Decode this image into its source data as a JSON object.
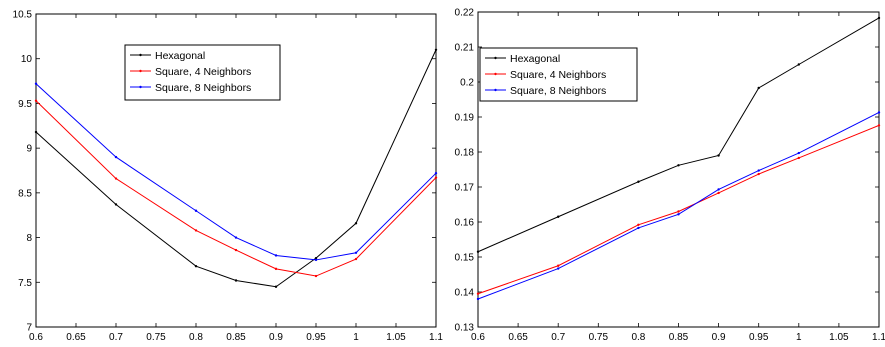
{
  "chart_data": [
    {
      "type": "line",
      "x": [
        0.6,
        0.7,
        0.8,
        0.85,
        0.9,
        0.95,
        1.0,
        1.1
      ],
      "xlim": [
        0.6,
        1.1
      ],
      "ylim": [
        7,
        10.5
      ],
      "xticks": [
        "0.6",
        "0.65",
        "0.7",
        "0.75",
        "0.8",
        "0.85",
        "0.9",
        "0.95",
        "1",
        "1.05",
        "1.1"
      ],
      "yticks": [
        "7",
        "7.5",
        "8",
        "8.5",
        "9",
        "9.5",
        "10",
        "10.5"
      ],
      "legend_position": "upper-center",
      "grid": false,
      "series": [
        {
          "name": "Hexagonal",
          "color": "#000000",
          "values": [
            9.18,
            8.37,
            7.68,
            7.52,
            7.45,
            7.77,
            8.16,
            10.1
          ]
        },
        {
          "name": "Square, 4 Neighbors",
          "color": "#ff0000",
          "values": [
            9.53,
            8.66,
            8.08,
            7.86,
            7.65,
            7.57,
            7.76,
            8.67
          ]
        },
        {
          "name": "Square, 8 Neighbors",
          "color": "#0000ff",
          "values": [
            9.72,
            8.9,
            8.3,
            8.0,
            7.8,
            7.75,
            7.83,
            8.72
          ]
        }
      ]
    },
    {
      "type": "line",
      "x": [
        0.6,
        0.7,
        0.8,
        0.85,
        0.9,
        0.95,
        1.0,
        1.1
      ],
      "xlim": [
        0.6,
        1.1
      ],
      "ylim": [
        0.13,
        0.22
      ],
      "xticks": [
        "0.6",
        "0.65",
        "0.7",
        "0.75",
        "0.8",
        "0.85",
        "0.9",
        "0.95",
        "1",
        "1.05",
        "1.1"
      ],
      "yticks": [
        "0.13",
        "0.14",
        "0.15",
        "0.16",
        "0.17",
        "0.18",
        "0.19",
        "0.2",
        "0.21",
        "0.22"
      ],
      "legend_position": "upper-left",
      "grid": false,
      "series": [
        {
          "name": "Hexagonal",
          "color": "#000000",
          "values": [
            0.1515,
            0.1615,
            0.1715,
            0.1762,
            0.179,
            0.1983,
            0.205,
            0.2183
          ]
        },
        {
          "name": "Square, 4 Neighbors",
          "color": "#ff0000",
          "values": [
            0.1395,
            0.1475,
            0.1592,
            0.163,
            0.1683,
            0.1737,
            0.1783,
            0.1876
          ]
        },
        {
          "name": "Square, 8 Neighbors",
          "color": "#0000ff",
          "values": [
            0.138,
            0.1467,
            0.1583,
            0.1622,
            0.1693,
            0.1747,
            0.1797,
            0.1913
          ]
        }
      ]
    }
  ]
}
